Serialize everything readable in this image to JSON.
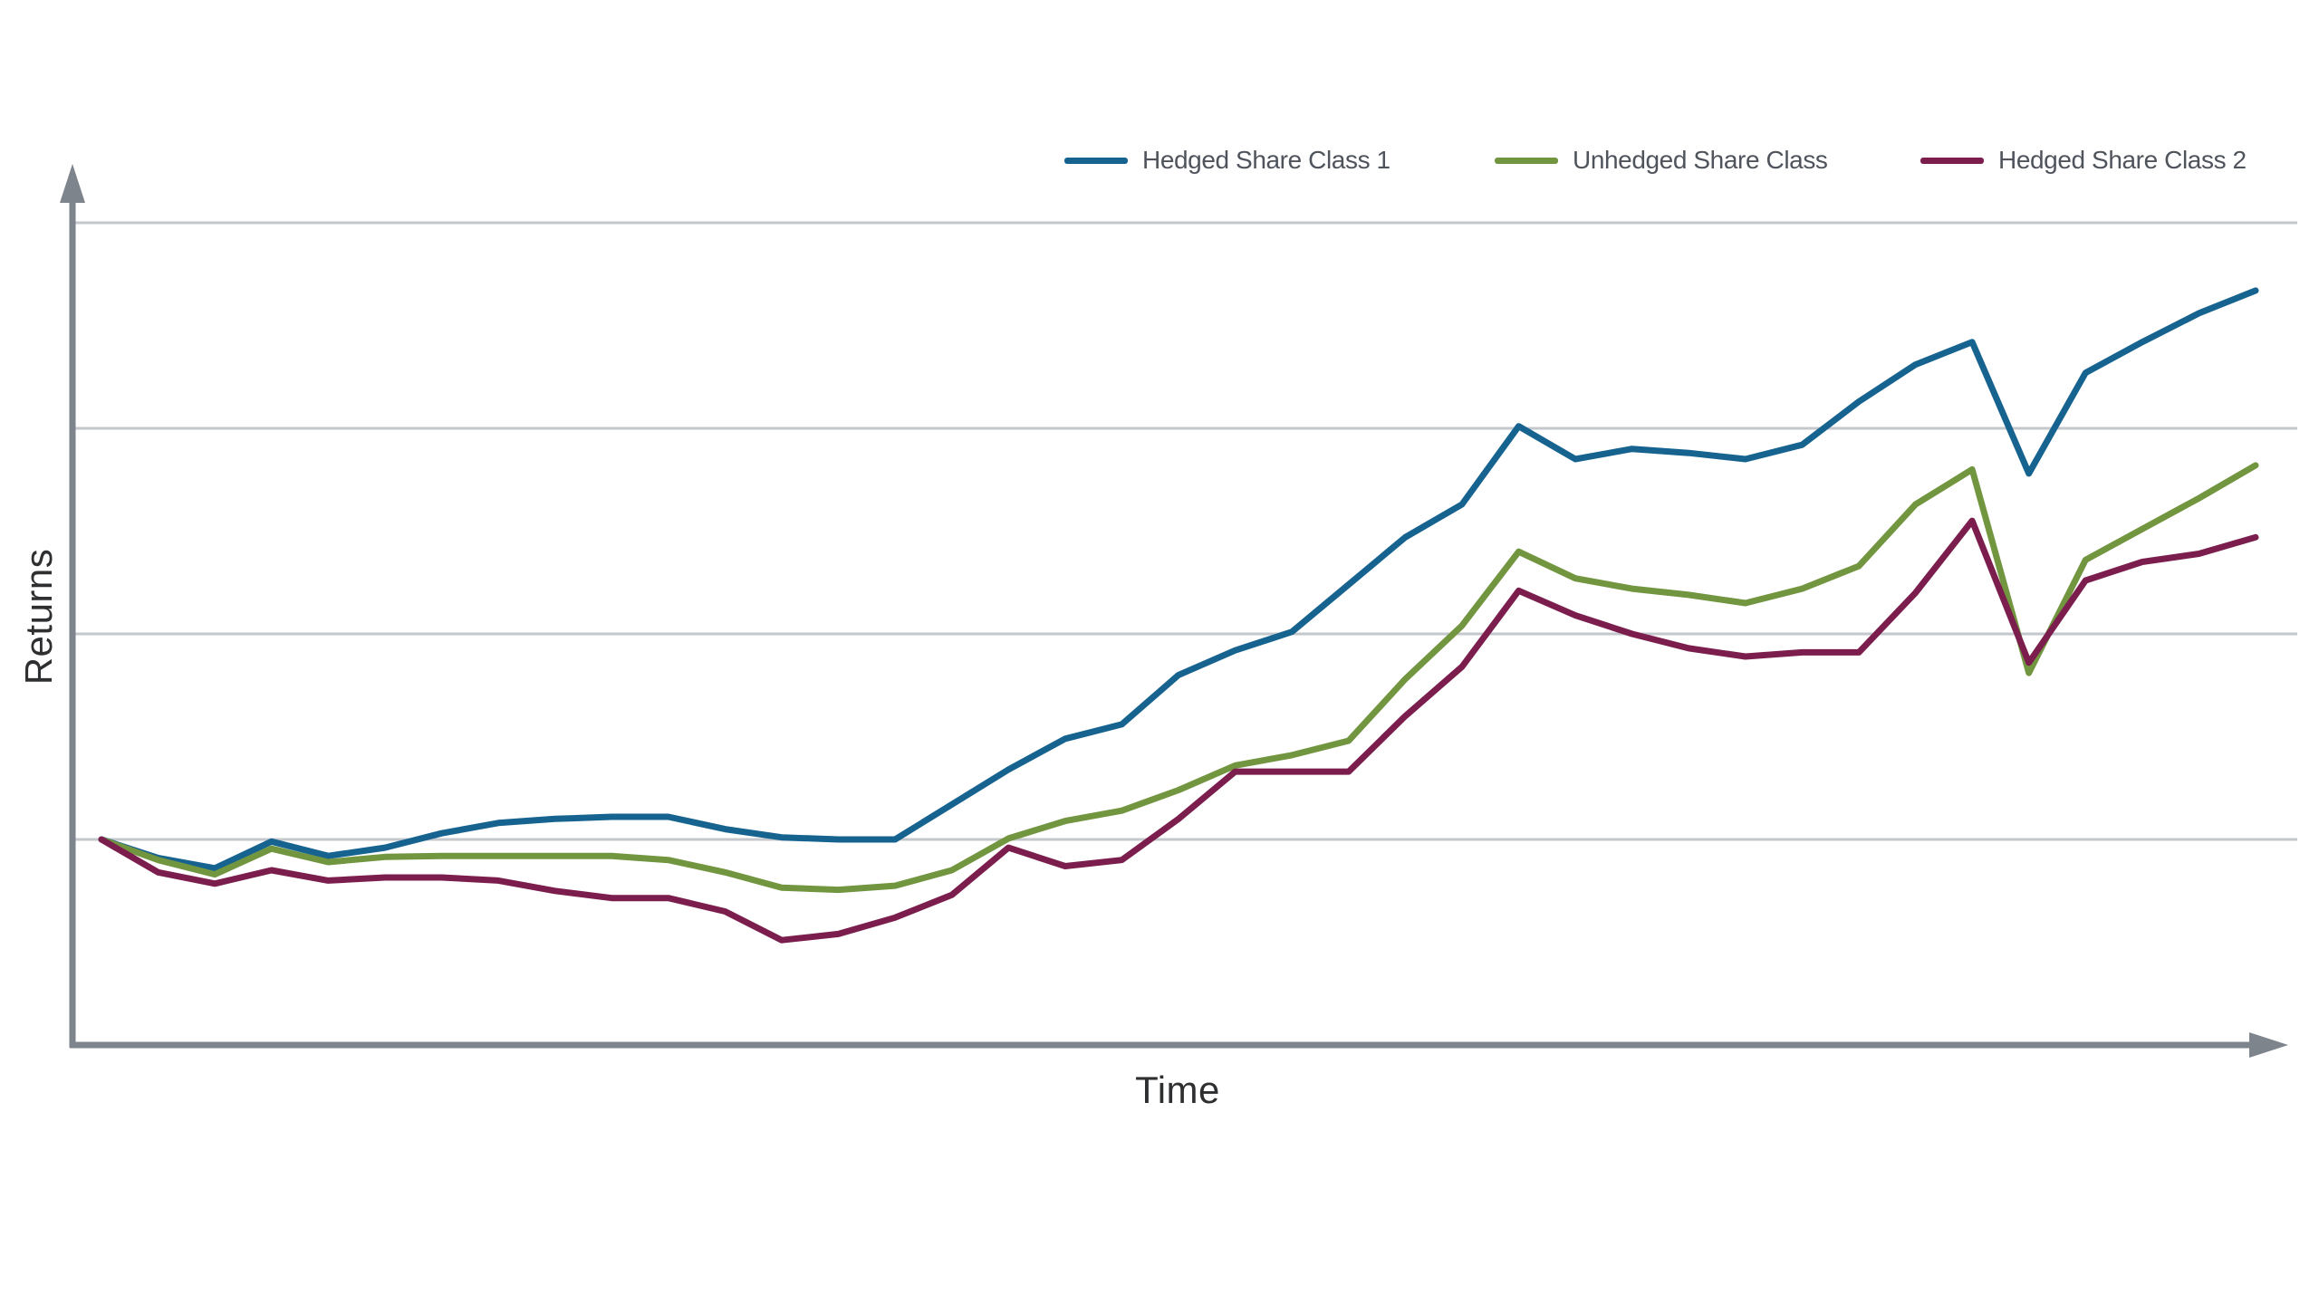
{
  "chart_data": {
    "type": "line",
    "title": "",
    "xlabel": "Time",
    "ylabel": "Returns",
    "x_type": "index",
    "x": [
      0,
      1,
      2,
      3,
      4,
      5,
      6,
      7,
      8,
      9,
      10,
      11,
      12,
      13,
      14,
      15,
      16,
      17,
      18,
      19,
      20,
      21,
      22,
      23,
      24,
      25,
      26,
      27,
      28,
      29,
      30,
      31,
      32,
      33,
      34,
      35,
      36,
      37,
      38
    ],
    "y_unit": "relative return, 1.0 = one gridline spacing above common start value",
    "ylim": [
      -0.9,
      3.1
    ],
    "y_axis": {
      "label": "Returns",
      "tick_labels_visible": false,
      "gridline_values": [
        3,
        2,
        1,
        0
      ]
    },
    "x_axis": {
      "label": "Time",
      "tick_labels_visible": false
    },
    "grid_on": true,
    "grid_color": "#c4c7cb",
    "axis_color": "#7d848c",
    "legend_position": "top-right",
    "series": [
      {
        "name": "Hedged Share Class 1",
        "color": "#166390",
        "values": [
          0.0,
          -0.09,
          -0.14,
          -0.01,
          -0.08,
          -0.04,
          0.03,
          0.08,
          0.1,
          0.11,
          0.11,
          0.05,
          0.01,
          0.0,
          0.0,
          0.17,
          0.34,
          0.49,
          0.56,
          0.8,
          0.92,
          1.01,
          1.24,
          1.47,
          1.63,
          2.01,
          1.85,
          1.9,
          1.88,
          1.85,
          1.92,
          2.13,
          2.31,
          2.42,
          1.78,
          2.27,
          2.42,
          2.56,
          2.67
        ]
      },
      {
        "name": "Unhedged Share Class",
        "color": "#729540",
        "values": [
          0.0,
          -0.1,
          -0.17,
          -0.045,
          -0.11,
          -0.085,
          -0.08,
          -0.08,
          -0.08,
          -0.08,
          -0.1,
          -0.16,
          -0.235,
          -0.245,
          -0.225,
          -0.15,
          0.005,
          0.09,
          0.14,
          0.24,
          0.36,
          0.41,
          0.48,
          0.78,
          1.04,
          1.4,
          1.27,
          1.22,
          1.19,
          1.15,
          1.22,
          1.33,
          1.63,
          1.8,
          0.81,
          1.36,
          1.51,
          1.66,
          1.82
        ]
      },
      {
        "name": "Hedged Share Class 2",
        "color": "#7b1e4d",
        "values": [
          0.0,
          -0.16,
          -0.215,
          -0.15,
          -0.2,
          -0.185,
          -0.185,
          -0.2,
          -0.25,
          -0.285,
          -0.285,
          -0.35,
          -0.49,
          -0.46,
          -0.38,
          -0.27,
          -0.04,
          -0.13,
          -0.1,
          0.1,
          0.33,
          0.33,
          0.33,
          0.6,
          0.84,
          1.21,
          1.09,
          1.0,
          0.93,
          0.89,
          0.91,
          0.91,
          1.2,
          1.55,
          0.86,
          1.26,
          1.35,
          1.39,
          1.47
        ]
      }
    ]
  },
  "labels": {
    "x": "Time",
    "y": "Returns"
  },
  "legend": {
    "items": [
      "Hedged Share Class 1",
      "Unhedged Share Class",
      "Hedged Share Class 2"
    ]
  },
  "colors": {
    "axis": "#7d848c",
    "gridline": "#c4c7cb",
    "legend_text": "#4f545c",
    "axis_label_text": "#2e2f31"
  }
}
